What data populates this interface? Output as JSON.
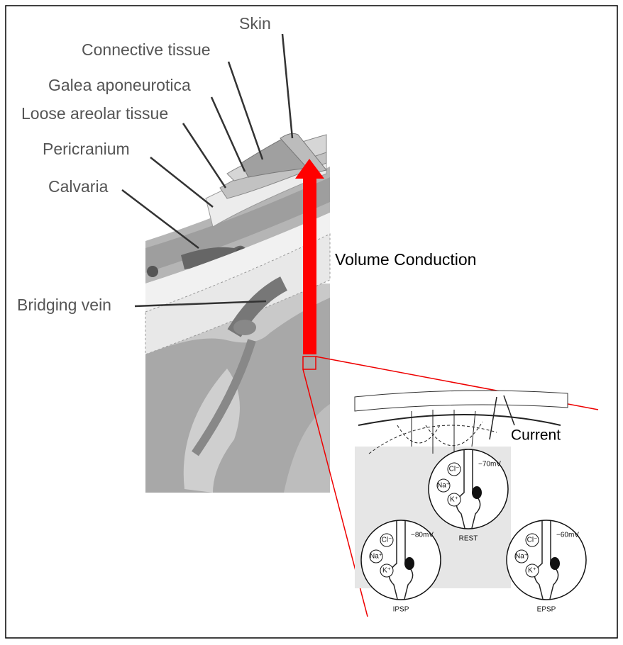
{
  "layer_labels": [
    {
      "text": "Skin"
    },
    {
      "text": "Connective tissue"
    },
    {
      "text": "Galea aponeurotica"
    },
    {
      "text": "Loose areolar tissue"
    },
    {
      "text": "Pericranium"
    },
    {
      "text": "Calvaria"
    },
    {
      "text": "Bridging vein"
    }
  ],
  "arrow_label": "Volume Conduction",
  "inset": {
    "label": "Current",
    "panels": [
      {
        "title": "REST",
        "potential": "−70mV",
        "ions": [
          "Cl⁻",
          "Na⁺",
          "K⁺"
        ]
      },
      {
        "title": "IPSP",
        "potential": "−80mV",
        "ions": [
          "Cl⁻",
          "Na⁺",
          "K⁺"
        ]
      },
      {
        "title": "EPSP",
        "potential": "−60mV",
        "ions": [
          "Cl⁻",
          "Na⁺",
          "K⁺"
        ]
      }
    ]
  }
}
